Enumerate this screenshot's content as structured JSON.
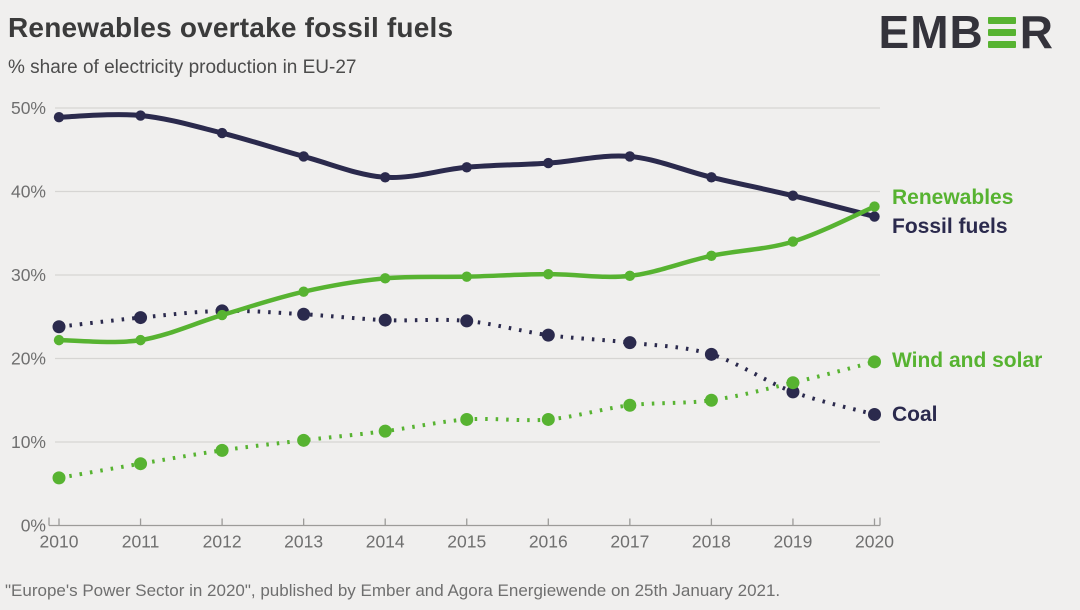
{
  "header": {
    "title": "Renewables overtake fossil fuels",
    "subtitle": "% share of electricity production in EU-27"
  },
  "logo": {
    "part1": "EMB",
    "part2": "R",
    "bar_color": "#57b331",
    "text_color": "#34333b"
  },
  "colors": {
    "green": "#57b331",
    "navy": "#2b2a4d",
    "gridline": "#d6d5d3",
    "axis": "#9c9b99",
    "tick_label": "#6f6f6f"
  },
  "chart_data": {
    "type": "line",
    "title": "Renewables overtake fossil fuels",
    "subtitle": "% share of electricity production in EU-27",
    "x": [
      2010,
      2011,
      2012,
      2013,
      2014,
      2015,
      2016,
      2017,
      2018,
      2019,
      2020
    ],
    "y_ticks": [
      "0%",
      "10%",
      "20%",
      "30%",
      "40%",
      "50%"
    ],
    "ylim": [
      0,
      50
    ],
    "grid": true,
    "legend_position": "right-of-line-endpoints",
    "series": [
      {
        "name": "Fossil fuels",
        "color": "#2b2a4d",
        "style": "solid",
        "values": [
          48.9,
          49.1,
          47.0,
          44.2,
          41.7,
          42.9,
          43.4,
          44.2,
          41.7,
          39.5,
          37.0
        ]
      },
      {
        "name": "Renewables",
        "color": "#57b331",
        "style": "solid",
        "values": [
          22.2,
          22.2,
          25.2,
          28.0,
          29.6,
          29.8,
          30.1,
          29.9,
          32.3,
          34.0,
          38.2
        ]
      },
      {
        "name": "Wind and solar",
        "color": "#57b331",
        "style": "dotted",
        "values": [
          5.7,
          7.4,
          9.0,
          10.2,
          11.3,
          12.7,
          12.7,
          14.4,
          15.0,
          17.1,
          19.6
        ]
      },
      {
        "name": "Coal",
        "color": "#2b2a4d",
        "style": "dotted",
        "values": [
          23.8,
          24.9,
          25.7,
          25.3,
          24.6,
          24.5,
          22.8,
          21.9,
          20.5,
          16.0,
          13.3
        ]
      }
    ]
  },
  "footer": {
    "source": "\"Europe's Power Sector in 2020\", published by Ember and Agora Energiewende on 25th January 2021."
  }
}
